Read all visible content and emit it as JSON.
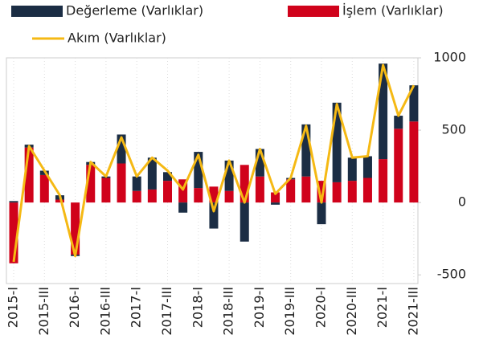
{
  "chart_data": {
    "type": "stacked_bar_line",
    "categories": [
      "2015-I",
      null,
      "2015-III",
      null,
      "2016-I",
      null,
      "2016-III",
      null,
      "2017-I",
      null,
      "2017-III",
      null,
      "2018-I",
      null,
      "2018-III",
      null,
      "2019-I",
      null,
      "2019-III",
      null,
      "2020-I",
      null,
      "2020-III",
      null,
      "2021-I",
      null,
      "2021-III"
    ],
    "series": [
      {
        "name": "Değerleme (Varlıklar)",
        "color": "#1b2d44",
        "kind": "bar",
        "values": [
          10,
          20,
          30,
          30,
          -10,
          20,
          10,
          200,
          100,
          220,
          60,
          -70,
          250,
          -180,
          210,
          -270,
          190,
          -15,
          10,
          360,
          -150,
          550,
          160,
          150,
          660,
          90,
          250
        ]
      },
      {
        "name": "İşlem (Varlıklar)",
        "color": "#d0021b",
        "kind": "bar",
        "values": [
          -420,
          380,
          190,
          20,
          -360,
          260,
          170,
          270,
          80,
          90,
          150,
          160,
          100,
          110,
          80,
          260,
          180,
          70,
          160,
          180,
          150,
          140,
          150,
          170,
          300,
          510,
          560
        ]
      },
      {
        "name": "Akım (Varlıklar)",
        "color": "#f5b914",
        "kind": "line",
        "values": [
          -410,
          390,
          220,
          50,
          -370,
          280,
          180,
          450,
          180,
          310,
          220,
          90,
          330,
          -60,
          290,
          0,
          370,
          60,
          170,
          530,
          0,
          680,
          310,
          320,
          950,
          600,
          810
        ]
      }
    ],
    "ylim": [
      -560,
      1000
    ],
    "yticks": [
      -500,
      0,
      500,
      1000
    ]
  }
}
